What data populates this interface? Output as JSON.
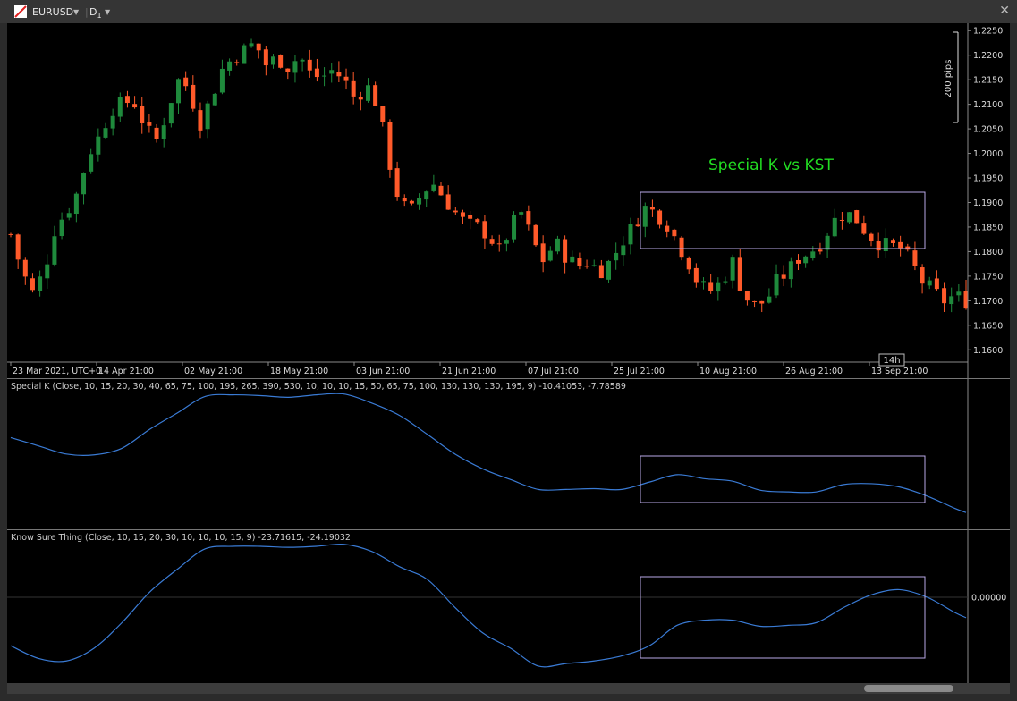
{
  "window": {
    "symbol": "EURUSD",
    "timeframe": "D",
    "timeframe_sub": "1"
  },
  "chart_title": "Special K vs KST",
  "main_panel": {
    "y_ticks": [
      "1.2250",
      "1.2200",
      "1.2150",
      "1.2100",
      "1.2050",
      "1.2000",
      "1.1950",
      "1.1900",
      "1.1850",
      "1.1800",
      "1.1750",
      "1.1700",
      "1.1650",
      "1.1600"
    ],
    "x_ticks": [
      "23 Mar 2021, UTC+0",
      "14 Apr 21:00",
      "02 May 21:00",
      "18 May 21:00",
      "03 Jun 21:00",
      "21 Jun 21:00",
      "07 Jul 21:00",
      "25 Jul 21:00",
      "10 Aug 21:00",
      "26 Aug 21:00",
      "13 Sep 21:00"
    ],
    "ruler_label": "200 pips",
    "cursor_label": "14h"
  },
  "special_k_panel": {
    "label": "Special K (Close, 10, 15, 20, 30, 40, 65, 75, 100, 195, 265, 390, 530, 10, 10, 10, 15, 50, 65, 75, 100, 130, 130, 130, 195, 9) -10.41053, -7.78589"
  },
  "kst_panel": {
    "label": "Know Sure Thing (Close, 10, 15, 20, 30, 10, 10, 10, 15, 9) -23.71615, -24.19032",
    "zero_label": "0.00000"
  },
  "colors": {
    "bull": "#1f8a3c",
    "bear": "#ff5a2a",
    "indicator": "#3a7bd5",
    "box": "#b9a8e6",
    "title": "#22dd22"
  },
  "chart_data": [
    {
      "type": "candlestick",
      "symbol": "EURUSD",
      "period": "D1",
      "x_range": [
        "2021-03-23",
        "2021-09-23"
      ],
      "ylim": [
        1.1575,
        1.2265
      ],
      "close_path": [
        [
          0,
          1.1835
        ],
        [
          4,
          1.176
        ],
        [
          8,
          1.1715
        ],
        [
          12,
          1.176
        ],
        [
          16,
          1.185
        ],
        [
          20,
          1.188
        ],
        [
          24,
          1.192
        ],
        [
          28,
          1.2
        ],
        [
          32,
          1.2035
        ],
        [
          36,
          1.209
        ],
        [
          40,
          1.21
        ],
        [
          44,
          1.211
        ],
        [
          48,
          1.206
        ],
        [
          52,
          1.202
        ],
        [
          56,
          1.208
        ],
        [
          60,
          1.215
        ],
        [
          64,
          1.2135
        ],
        [
          68,
          1.206
        ],
        [
          72,
          1.211
        ],
        [
          76,
          1.217
        ],
        [
          80,
          1.2195
        ],
        [
          84,
          1.221
        ],
        [
          88,
          1.2225
        ],
        [
          92,
          1.218
        ],
        [
          96,
          1.2195
        ],
        [
          100,
          1.2175
        ],
        [
          104,
          1.22
        ],
        [
          108,
          1.216
        ],
        [
          112,
          1.2155
        ],
        [
          116,
          1.217
        ],
        [
          120,
          1.215
        ],
        [
          124,
          1.211
        ],
        [
          128,
          1.214
        ],
        [
          132,
          1.21
        ],
        [
          136,
          1.199
        ],
        [
          140,
          1.19
        ],
        [
          144,
          1.188
        ],
        [
          148,
          1.192
        ],
        [
          152,
          1.194
        ],
        [
          156,
          1.191
        ],
        [
          160,
          1.188
        ],
        [
          164,
          1.1855
        ],
        [
          168,
          1.185
        ],
        [
          172,
          1.1835
        ],
        [
          176,
          1.18
        ],
        [
          180,
          1.185
        ],
        [
          184,
          1.188
        ],
        [
          188,
          1.182
        ],
        [
          192,
          1.178
        ],
        [
          196,
          1.182
        ],
        [
          200,
          1.179
        ],
        [
          204,
          1.177
        ],
        [
          208,
          1.178
        ],
        [
          212,
          1.176
        ],
        [
          216,
          1.178
        ],
        [
          220,
          1.182
        ],
        [
          224,
          1.185
        ],
        [
          228,
          1.189
        ],
        [
          232,
          1.188
        ],
        [
          236,
          1.186
        ],
        [
          240,
          1.182
        ],
        [
          244,
          1.178
        ],
        [
          248,
          1.173
        ],
        [
          252,
          1.172
        ],
        [
          256,
          1.174
        ],
        [
          260,
          1.178
        ],
        [
          264,
          1.171
        ],
        [
          268,
          1.169
        ],
        [
          272,
          1.17
        ],
        [
          276,
          1.174
        ],
        [
          280,
          1.176
        ],
        [
          284,
          1.179
        ],
        [
          288,
          1.18
        ],
        [
          292,
          1.182
        ],
        [
          296,
          1.186
        ],
        [
          300,
          1.188
        ],
        [
          304,
          1.187
        ],
        [
          308,
          1.184
        ],
        [
          312,
          1.182
        ],
        [
          316,
          1.181
        ],
        [
          320,
          1.181
        ],
        [
          324,
          1.178
        ],
        [
          328,
          1.174
        ],
        [
          332,
          1.172
        ],
        [
          336,
          1.17
        ],
        [
          340,
          1.171
        ],
        [
          344,
          1.17
        ]
      ]
    },
    {
      "type": "line",
      "name": "Special K (Close, 10, 15, 20, 30, 40, 65, 75, 100, 195, 265, 390, 530, 10, 10, 10, 15, 50, 65, 75, 100, 130, 130, 130, 195, 9)",
      "x": [
        0,
        10,
        20,
        30,
        40,
        50,
        60,
        70,
        80,
        90,
        100,
        110,
        120,
        130,
        140,
        150,
        160,
        170,
        180,
        190,
        200,
        210,
        220,
        230,
        240,
        250,
        260,
        270,
        280,
        290,
        300,
        310,
        320,
        330,
        340,
        344
      ],
      "values": [
        18,
        8,
        -2,
        -3,
        5,
        28,
        48,
        68,
        70,
        69,
        67,
        70,
        71,
        60,
        45,
        22,
        -2,
        -20,
        -33,
        -45,
        -45,
        -44,
        -45,
        -36,
        -27,
        -32,
        -35,
        -46,
        -48,
        -48,
        -39,
        -38,
        -42,
        -53,
        -68,
        -73
      ]
    },
    {
      "type": "line",
      "name": "Know Sure Thing (Close, 10, 15, 20, 30, 10, 10, 10, 15, 9)",
      "x": [
        0,
        10,
        20,
        30,
        40,
        50,
        60,
        70,
        80,
        90,
        100,
        110,
        120,
        130,
        140,
        150,
        160,
        170,
        180,
        190,
        200,
        210,
        220,
        230,
        240,
        250,
        260,
        270,
        280,
        290,
        300,
        310,
        320,
        330,
        340,
        344
      ],
      "values": [
        -95,
        -120,
        -125,
        -100,
        -50,
        10,
        55,
        95,
        100,
        100,
        98,
        100,
        104,
        90,
        60,
        35,
        -20,
        -70,
        -100,
        -135,
        -130,
        -125,
        -115,
        -95,
        -55,
        -45,
        -45,
        -57,
        -55,
        -50,
        -20,
        5,
        15,
        0,
        -30,
        -40
      ],
      "zero_line": 0
    }
  ]
}
